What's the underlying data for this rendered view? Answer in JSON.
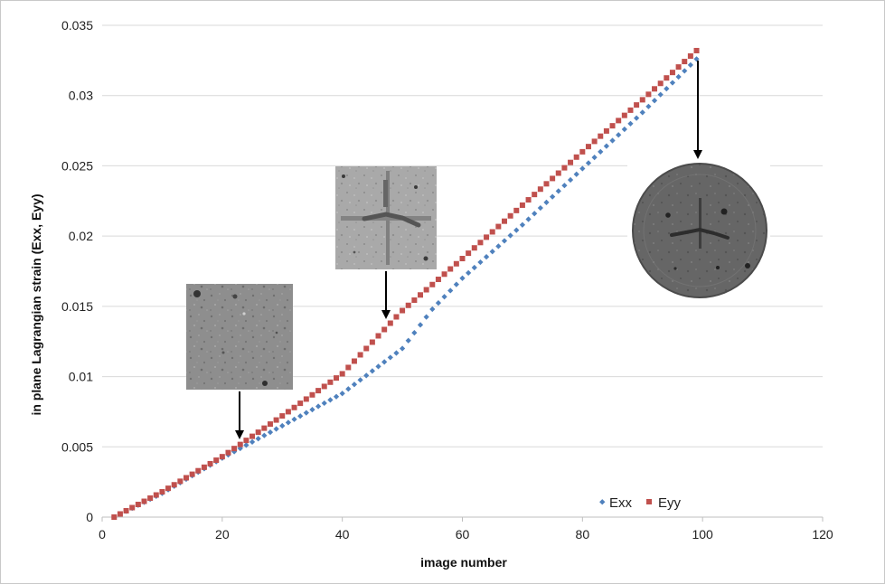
{
  "chart_data": {
    "type": "scatter",
    "title": "",
    "xlabel": "image number",
    "ylabel": "in plane Lagrangian strain (Exx, Eyy)",
    "xlim": [
      0,
      120
    ],
    "ylim": [
      0,
      0.035
    ],
    "x_ticks": [
      0,
      20,
      40,
      60,
      80,
      100,
      120
    ],
    "x_tick_labels": [
      "0",
      "20",
      "40",
      "60",
      "80",
      "100",
      "120"
    ],
    "y_ticks": [
      0,
      0.005,
      0.01,
      0.015,
      0.02,
      0.025,
      0.03,
      0.035
    ],
    "y_tick_labels": [
      "0",
      "0.005",
      "0.01",
      "0.015",
      "0.02",
      "0.025",
      "0.03",
      "0.035"
    ],
    "grid": "horizontal",
    "legend_position": "bottom-right",
    "series": [
      {
        "name": "Exx",
        "color": "#4f81bd",
        "marker": "diamond",
        "points": [
          [
            2,
            0
          ],
          [
            10,
            0.0017
          ],
          [
            20,
            0.0042
          ],
          [
            30,
            0.0065
          ],
          [
            40,
            0.0088
          ],
          [
            50,
            0.012
          ],
          [
            55,
            0.0148
          ],
          [
            60,
            0.017
          ],
          [
            70,
            0.0208
          ],
          [
            80,
            0.0248
          ],
          [
            90,
            0.0288
          ],
          [
            99,
            0.0326
          ]
        ]
      },
      {
        "name": "Eyy",
        "color": "#c0504d",
        "marker": "square",
        "points": [
          [
            2,
            0
          ],
          [
            10,
            0.0018
          ],
          [
            20,
            0.0043
          ],
          [
            30,
            0.0072
          ],
          [
            40,
            0.0102
          ],
          [
            50,
            0.0147
          ],
          [
            60,
            0.0184
          ],
          [
            70,
            0.0222
          ],
          [
            80,
            0.026
          ],
          [
            90,
            0.0297
          ],
          [
            99,
            0.0332
          ]
        ]
      }
    ],
    "annotations": [
      {
        "name": "inset-image-early",
        "x": 23,
        "y": 0.0048,
        "kind": "speckle-image"
      },
      {
        "name": "inset-image-mid",
        "x": 47,
        "y": 0.0138,
        "kind": "speckle-image"
      },
      {
        "name": "inset-image-late",
        "x": 99,
        "y": 0.0327,
        "kind": "circular-specimen"
      }
    ]
  }
}
